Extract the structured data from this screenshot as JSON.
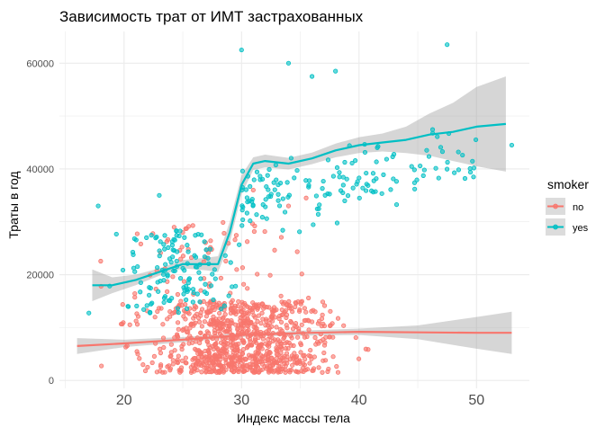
{
  "chart_data": {
    "type": "scatter",
    "title": "Зависимость трат от ИМТ застрахованных",
    "xlabel": "Индекс массы тела",
    "ylabel": "Траты в год",
    "xlim": [
      14.5,
      54.5
    ],
    "ylim": [
      -1500,
      66000
    ],
    "x_ticks": [
      20,
      30,
      40,
      50
    ],
    "x_tick_labels": [
      "20",
      "30",
      "40",
      "50"
    ],
    "y_ticks": [
      0,
      20000,
      40000,
      60000
    ],
    "y_tick_labels": [
      "0",
      "20000",
      "40000",
      "60000"
    ],
    "grid": true,
    "legend": {
      "title": "smoker",
      "position": "right",
      "entries": [
        {
          "label": "no",
          "color": "#F8766D"
        },
        {
          "label": "yes",
          "color": "#00BFC4"
        }
      ]
    },
    "series": [
      {
        "name": "no",
        "color": "#F8766D",
        "x_range": [
          16,
          53
        ],
        "y_range": [
          1100,
          36000
        ],
        "smooth": {
          "x": [
            16,
            20,
            25,
            28,
            30,
            33,
            36,
            40,
            45,
            50,
            53
          ],
          "y": [
            6500,
            7000,
            7700,
            8200,
            8600,
            8800,
            9000,
            9200,
            9100,
            9000,
            9000
          ],
          "lower": [
            5000,
            6300,
            7200,
            7800,
            8200,
            8400,
            8500,
            8600,
            7800,
            6000,
            5000
          ],
          "upper": [
            8000,
            7700,
            8200,
            8600,
            9000,
            9200,
            9500,
            9800,
            10400,
            12000,
            13000
          ]
        }
      },
      {
        "name": "yes",
        "color": "#00BFC4",
        "x_range": [
          17,
          53
        ],
        "y_range": [
          12000,
          63000
        ],
        "smooth": {
          "x": [
            17.3,
            19,
            21,
            23,
            25,
            27,
            28,
            29,
            30,
            31,
            32,
            34,
            36,
            38,
            40,
            42,
            44,
            46,
            48,
            50,
            52.5
          ],
          "y": [
            18000,
            18000,
            19000,
            20500,
            22000,
            22000,
            22000,
            28000,
            37000,
            41000,
            41500,
            41000,
            42000,
            43500,
            44500,
            45000,
            45500,
            46500,
            47000,
            48000,
            48500
          ],
          "lower": [
            15000,
            16500,
            18000,
            19800,
            21200,
            20800,
            20500,
            26000,
            35200,
            39800,
            40300,
            39900,
            40900,
            42200,
            43000,
            43300,
            43000,
            42500,
            41500,
            40500,
            39500
          ],
          "upper": [
            21000,
            19500,
            20000,
            21200,
            22800,
            23200,
            23500,
            30000,
            38800,
            42200,
            42700,
            42100,
            43100,
            44800,
            46000,
            46700,
            48000,
            50500,
            52500,
            55500,
            57500
          ]
        }
      }
    ]
  }
}
